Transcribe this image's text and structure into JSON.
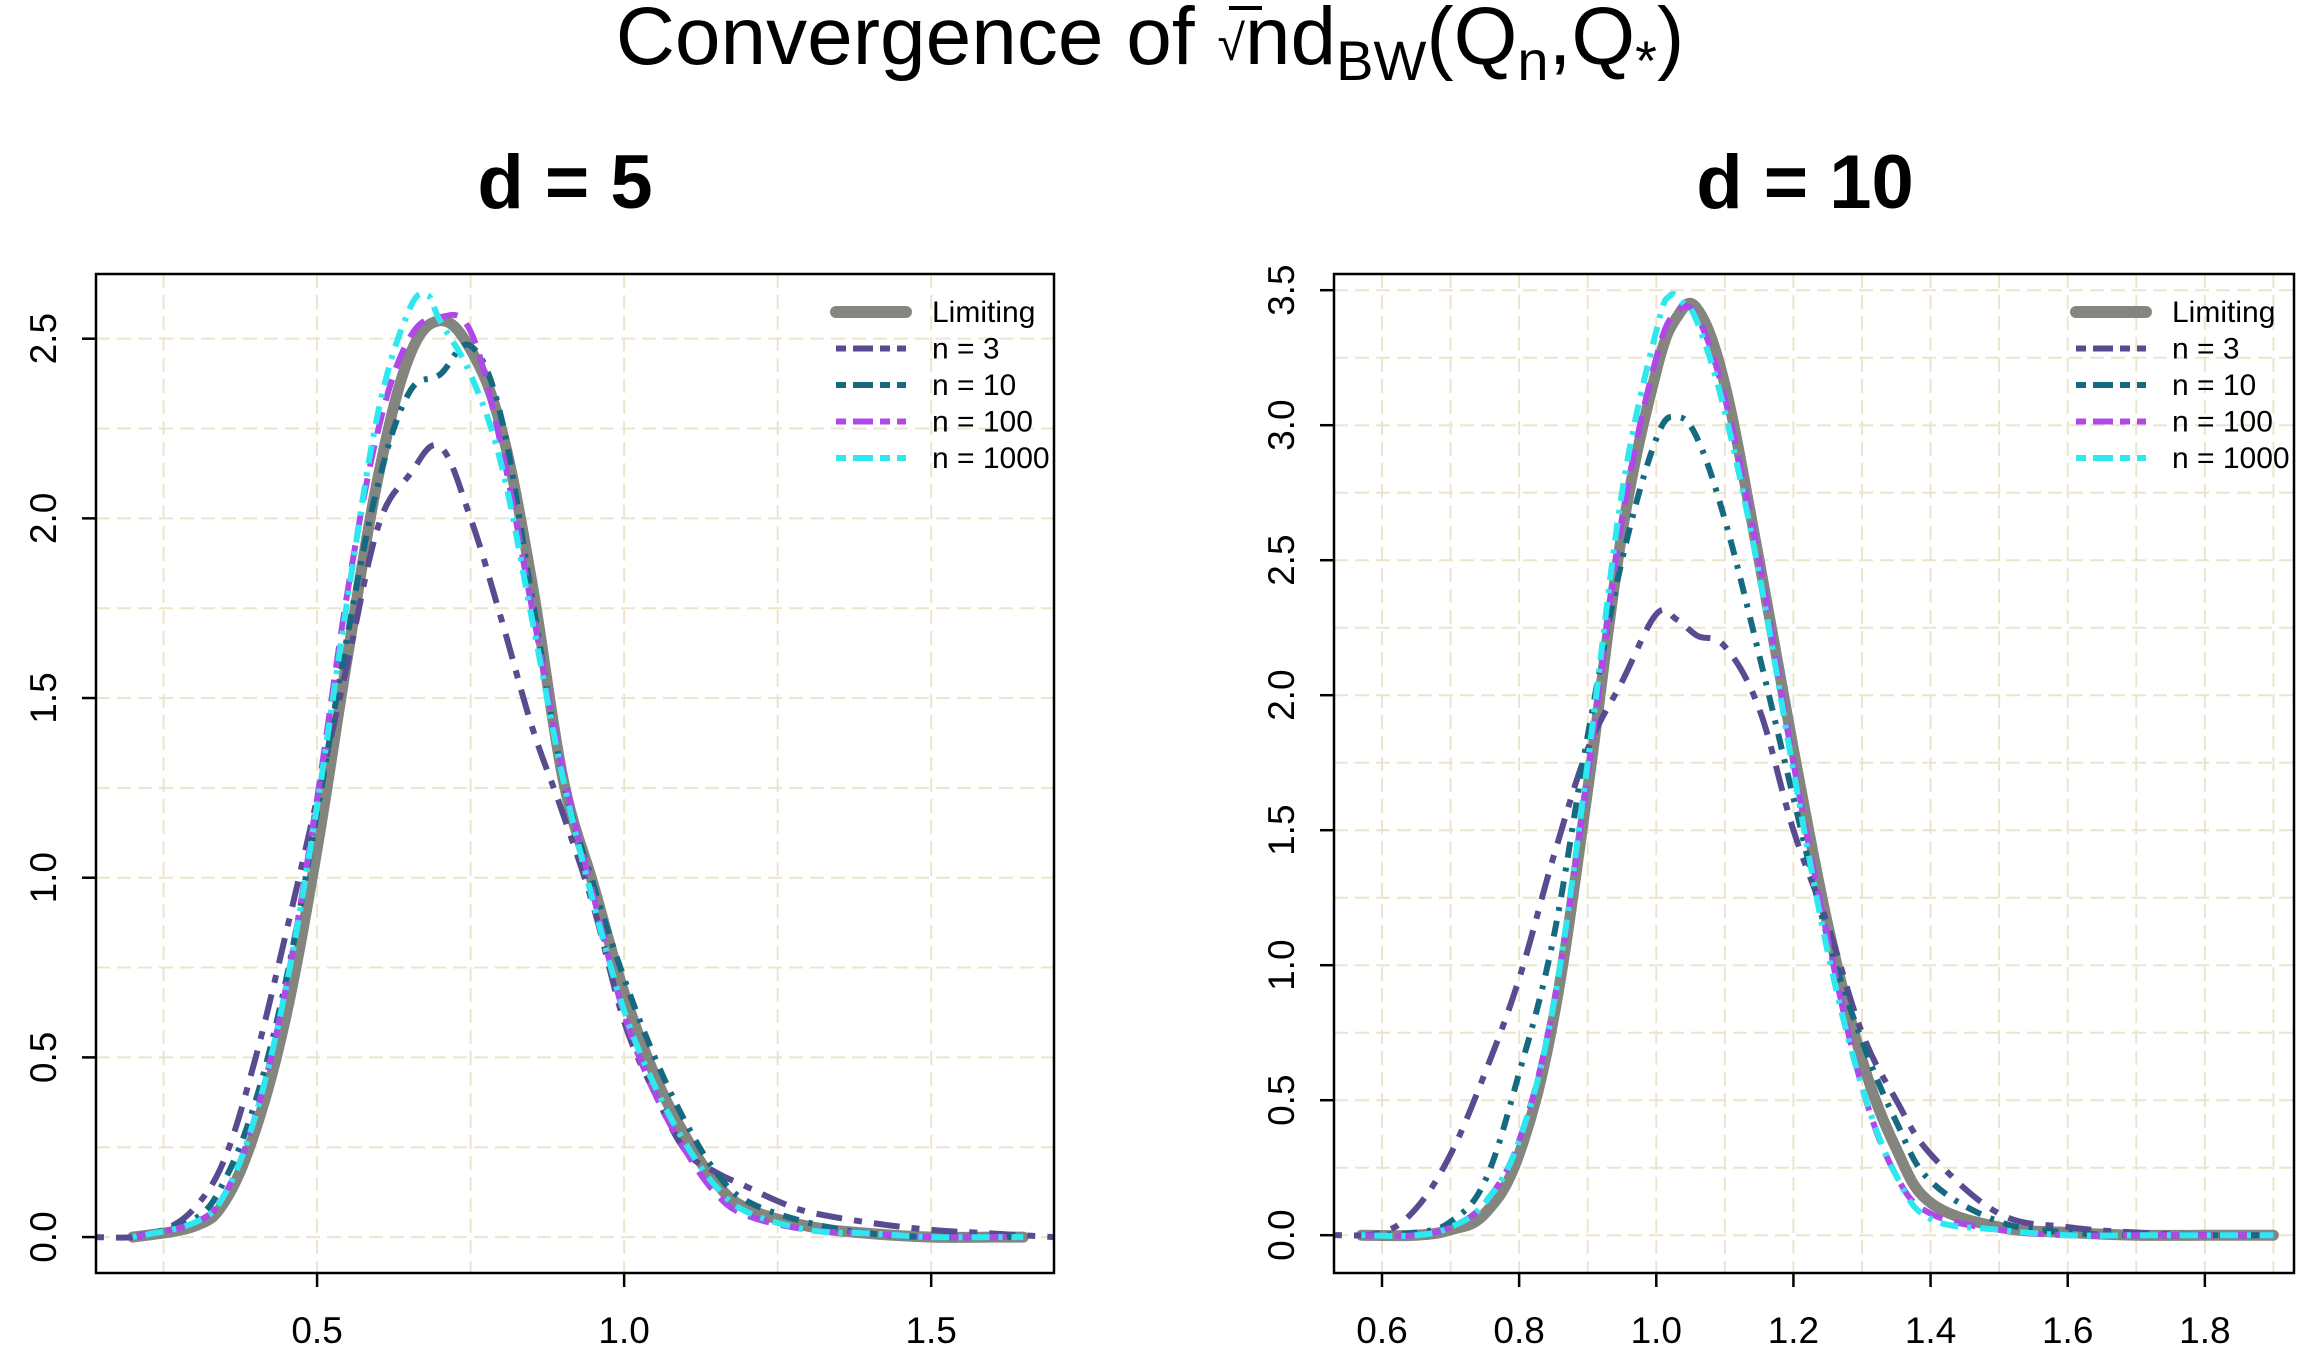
{
  "figure_title": {
    "prefix": "Convergence of ",
    "sqrt_arg": "n",
    "d": "d",
    "sub_bw": "BW",
    "open": "(Q",
    "sub_n": "n",
    "comma": ",Q",
    "sub_star": "*",
    "close": ")"
  },
  "colors": {
    "Limiting": "#858580",
    "n = 3": "#5a4a8f",
    "n = 10": "#156a82",
    "n = 100": "#b048e8",
    "n = 1000": "#2ee8f0",
    "grid": "#ece5cc"
  },
  "chart_data": [
    {
      "type": "line",
      "title": "d = 5",
      "xlabel": "",
      "ylabel": "",
      "xlim": [
        0.14,
        1.7
      ],
      "ylim": [
        -0.1,
        2.68
      ],
      "xticks": [
        0.5,
        1.0,
        1.5
      ],
      "xtick_labels": [
        "0.5",
        "1.0",
        "1.5"
      ],
      "yticks": [
        0.0,
        0.5,
        1.0,
        1.5,
        2.0,
        2.5
      ],
      "ytick_labels": [
        "0.0",
        "0.5",
        "1.0",
        "1.5",
        "2.0",
        "2.5"
      ],
      "grid": true,
      "legend_position": "top-right",
      "legend": [
        "Limiting",
        "n = 3",
        "n = 10",
        "n = 100",
        "n = 1000"
      ],
      "series": [
        {
          "name": "Limiting",
          "x": [
            0.2,
            0.3,
            0.35,
            0.4,
            0.45,
            0.5,
            0.55,
            0.6,
            0.65,
            0.7,
            0.75,
            0.8,
            0.85,
            0.9,
            0.95,
            1.0,
            1.05,
            1.1,
            1.15,
            1.2,
            1.3,
            1.4,
            1.5,
            1.6,
            1.65
          ],
          "y": [
            0.0,
            0.03,
            0.1,
            0.3,
            0.62,
            1.08,
            1.62,
            2.12,
            2.45,
            2.55,
            2.47,
            2.25,
            1.82,
            1.28,
            0.98,
            0.68,
            0.45,
            0.28,
            0.15,
            0.08,
            0.03,
            0.01,
            0.0,
            0.0,
            0.0
          ]
        },
        {
          "name": "n = 3",
          "x": [
            0.14,
            0.2,
            0.25,
            0.3,
            0.35,
            0.4,
            0.45,
            0.5,
            0.55,
            0.6,
            0.65,
            0.7,
            0.75,
            0.8,
            0.85,
            0.9,
            0.95,
            1.0,
            1.05,
            1.1,
            1.15,
            1.2,
            1.25,
            1.3,
            1.4,
            1.5,
            1.6,
            1.7
          ],
          "y": [
            0.0,
            0.0,
            0.02,
            0.08,
            0.22,
            0.5,
            0.85,
            1.22,
            1.6,
            1.98,
            2.12,
            2.2,
            2.0,
            1.72,
            1.42,
            1.18,
            0.92,
            0.6,
            0.4,
            0.24,
            0.18,
            0.14,
            0.1,
            0.07,
            0.04,
            0.02,
            0.01,
            0.0
          ]
        },
        {
          "name": "n = 10",
          "x": [
            0.2,
            0.3,
            0.35,
            0.4,
            0.45,
            0.5,
            0.55,
            0.6,
            0.65,
            0.7,
            0.75,
            0.8,
            0.85,
            0.9,
            0.95,
            1.0,
            1.05,
            1.1,
            1.15,
            1.2,
            1.3,
            1.4,
            1.5,
            1.6,
            1.65
          ],
          "y": [
            0.0,
            0.05,
            0.16,
            0.38,
            0.72,
            1.18,
            1.68,
            2.1,
            2.35,
            2.4,
            2.48,
            2.28,
            1.78,
            1.28,
            0.98,
            0.72,
            0.5,
            0.32,
            0.18,
            0.1,
            0.04,
            0.01,
            0.0,
            0.0,
            0.0
          ]
        },
        {
          "name": "n = 100",
          "x": [
            0.2,
            0.3,
            0.35,
            0.4,
            0.45,
            0.5,
            0.55,
            0.6,
            0.65,
            0.7,
            0.75,
            0.8,
            0.85,
            0.9,
            0.95,
            1.0,
            1.05,
            1.1,
            1.15,
            1.2,
            1.3,
            1.4,
            1.5,
            1.6,
            1.65
          ],
          "y": [
            0.0,
            0.04,
            0.12,
            0.34,
            0.7,
            1.22,
            1.8,
            2.25,
            2.5,
            2.56,
            2.52,
            2.2,
            1.75,
            1.3,
            0.95,
            0.62,
            0.4,
            0.24,
            0.12,
            0.06,
            0.02,
            0.01,
            0.0,
            0.0,
            0.0
          ]
        },
        {
          "name": "n = 1000",
          "x": [
            0.2,
            0.3,
            0.35,
            0.4,
            0.45,
            0.5,
            0.55,
            0.6,
            0.65,
            0.68,
            0.7,
            0.75,
            0.8,
            0.85,
            0.9,
            0.95,
            1.0,
            1.05,
            1.1,
            1.15,
            1.2,
            1.3,
            1.4,
            1.5,
            1.6,
            1.65
          ],
          "y": [
            0.0,
            0.04,
            0.12,
            0.34,
            0.7,
            1.2,
            1.78,
            2.3,
            2.58,
            2.62,
            2.55,
            2.4,
            2.15,
            1.72,
            1.28,
            0.93,
            0.63,
            0.42,
            0.26,
            0.14,
            0.07,
            0.02,
            0.01,
            0.0,
            0.0,
            0.0
          ]
        }
      ]
    },
    {
      "type": "line",
      "title": "d = 10",
      "xlabel": "",
      "ylabel": "",
      "xlim": [
        0.53,
        1.93
      ],
      "ylim": [
        -0.14,
        3.56
      ],
      "xticks": [
        0.6,
        0.8,
        1.0,
        1.2,
        1.4,
        1.6,
        1.8
      ],
      "xtick_labels": [
        "0.6",
        "0.8",
        "1.0",
        "1.2",
        "1.4",
        "1.6",
        "1.8"
      ],
      "yticks": [
        0.0,
        0.5,
        1.0,
        1.5,
        2.0,
        2.5,
        3.0,
        3.5
      ],
      "ytick_labels": [
        "0.0",
        "0.5",
        "1.0",
        "1.5",
        "2.0",
        "2.5",
        "3.0",
        "3.5"
      ],
      "grid": true,
      "legend_position": "top-right",
      "legend": [
        "Limiting",
        "n = 3",
        "n = 10",
        "n = 100",
        "n = 1000"
      ],
      "series": [
        {
          "name": "Limiting",
          "x": [
            0.57,
            0.65,
            0.7,
            0.75,
            0.8,
            0.85,
            0.9,
            0.95,
            1.0,
            1.03,
            1.06,
            1.1,
            1.15,
            1.2,
            1.25,
            1.3,
            1.35,
            1.4,
            1.5,
            1.6,
            1.7,
            1.8,
            1.9
          ],
          "y": [
            0.0,
            0.0,
            0.02,
            0.08,
            0.3,
            0.8,
            1.65,
            2.6,
            3.2,
            3.4,
            3.43,
            3.15,
            2.5,
            1.8,
            1.15,
            0.65,
            0.32,
            0.12,
            0.03,
            0.01,
            0.0,
            0.0,
            0.0
          ]
        },
        {
          "name": "n = 3",
          "x": [
            0.53,
            0.6,
            0.65,
            0.7,
            0.75,
            0.8,
            0.85,
            0.9,
            0.95,
            1.0,
            1.03,
            1.06,
            1.1,
            1.15,
            1.2,
            1.25,
            1.3,
            1.35,
            1.4,
            1.5,
            1.6,
            1.7,
            1.8,
            1.9
          ],
          "y": [
            0.0,
            0.01,
            0.1,
            0.3,
            0.6,
            0.95,
            1.4,
            1.8,
            2.05,
            2.3,
            2.28,
            2.22,
            2.18,
            1.95,
            1.5,
            1.15,
            0.75,
            0.5,
            0.3,
            0.08,
            0.03,
            0.01,
            0.0,
            0.0
          ]
        },
        {
          "name": "n = 10",
          "x": [
            0.57,
            0.65,
            0.7,
            0.75,
            0.8,
            0.85,
            0.9,
            0.95,
            1.0,
            1.03,
            1.06,
            1.1,
            1.15,
            1.2,
            1.25,
            1.3,
            1.35,
            1.4,
            1.5,
            1.6,
            1.7,
            1.8,
            1.9
          ],
          "y": [
            0.0,
            0.01,
            0.05,
            0.2,
            0.6,
            1.1,
            1.85,
            2.5,
            2.95,
            3.03,
            2.95,
            2.65,
            2.15,
            1.62,
            1.1,
            0.72,
            0.42,
            0.2,
            0.05,
            0.01,
            0.0,
            0.0,
            0.0
          ]
        },
        {
          "name": "n = 100",
          "x": [
            0.57,
            0.65,
            0.7,
            0.75,
            0.8,
            0.85,
            0.9,
            0.95,
            1.0,
            1.03,
            1.06,
            1.1,
            1.15,
            1.2,
            1.25,
            1.3,
            1.35,
            1.4,
            1.5,
            1.6,
            1.7,
            1.8,
            1.9
          ],
          "y": [
            0.0,
            0.0,
            0.03,
            0.12,
            0.35,
            0.85,
            1.7,
            2.65,
            3.25,
            3.42,
            3.4,
            3.1,
            2.5,
            1.75,
            1.1,
            0.55,
            0.22,
            0.08,
            0.02,
            0.0,
            0.0,
            0.0,
            0.0
          ]
        },
        {
          "name": "n = 1000",
          "x": [
            0.57,
            0.65,
            0.7,
            0.75,
            0.8,
            0.85,
            0.9,
            0.95,
            1.0,
            1.02,
            1.04,
            1.06,
            1.1,
            1.15,
            1.2,
            1.25,
            1.3,
            1.35,
            1.4,
            1.5,
            1.6,
            1.7,
            1.8,
            1.9
          ],
          "y": [
            0.0,
            0.0,
            0.03,
            0.12,
            0.35,
            0.85,
            1.75,
            2.75,
            3.35,
            3.48,
            3.45,
            3.38,
            3.05,
            2.45,
            1.72,
            1.05,
            0.55,
            0.22,
            0.06,
            0.02,
            0.0,
            0.0,
            0.0,
            0.0
          ]
        }
      ]
    }
  ]
}
